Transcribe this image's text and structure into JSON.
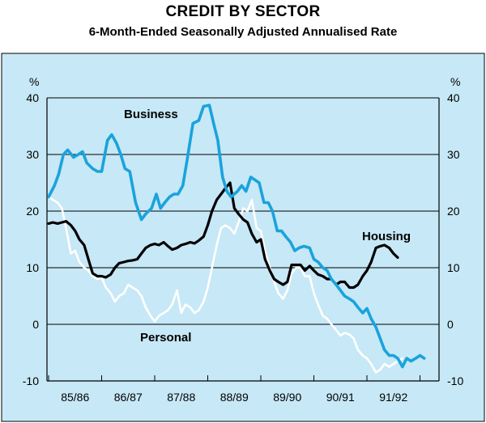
{
  "title": "CREDIT BY SECTOR",
  "subtitle": "6-Month-Ended Seasonally Adjusted Annualised Rate",
  "colors": {
    "panel": "#c7e8f6",
    "business": "#1aa3dc",
    "housing": "#000000",
    "personal": "#ffffff",
    "grid": "#000000"
  },
  "chart_data": {
    "type": "line",
    "title": "CREDIT BY SECTOR",
    "subtitle": "6-Month-Ended Seasonally Adjusted Annualised Rate",
    "ylabel_left": "%",
    "ylabel_right": "%",
    "ylim": [
      -10,
      40
    ],
    "yticks": [
      40,
      30,
      20,
      10,
      0,
      -10
    ],
    "yticks_left_labels": [
      "40",
      "30",
      "20",
      "10",
      "0",
      "-10"
    ],
    "yticks_right_labels": [
      "40",
      "30",
      "20",
      "10",
      "0",
      "-10"
    ],
    "xlim": [
      0,
      7.6
    ],
    "xticks": [
      "85/86",
      "86/87",
      "87/88",
      "88/89",
      "89/90",
      "90/91",
      "91/92"
    ],
    "grid": true,
    "series": [
      {
        "name": "Business",
        "label": "Business",
        "x": [
          0,
          0.11,
          0.19,
          0.28,
          0.36,
          0.47,
          0.56,
          0.64,
          0.72,
          0.83,
          0.92,
          1.0,
          1.11,
          1.19,
          1.28,
          1.36,
          1.44,
          1.53,
          1.64,
          1.75,
          1.83,
          1.94,
          2.03,
          2.11,
          2.19,
          2.28,
          2.36,
          2.44,
          2.53,
          2.61,
          2.72,
          2.83,
          2.92,
          3.03,
          3.11,
          3.19,
          3.28,
          3.36,
          3.44,
          3.56,
          3.64,
          3.72,
          3.81,
          3.89,
          3.97,
          4.06,
          4.14,
          4.22,
          4.31,
          4.39,
          4.47,
          4.56,
          4.64,
          4.72,
          4.81,
          4.92,
          5.0,
          5.08,
          5.17,
          5.25,
          5.33,
          5.42,
          5.5,
          5.58,
          5.67,
          5.75,
          5.83,
          5.92,
          6.0,
          6.08,
          6.17,
          6.25,
          6.33,
          6.42,
          6.5,
          6.58,
          6.67,
          6.75,
          6.83,
          6.92,
          7.0,
          7.08,
          7.17,
          7.25,
          7.33
        ],
        "values": [
          22.5,
          24.5,
          26.5,
          30.0,
          30.8,
          29.5,
          30.0,
          30.5,
          28.5,
          27.5,
          27.0,
          27.0,
          32.5,
          33.5,
          32.0,
          30.0,
          27.5,
          27.0,
          21.5,
          18.5,
          19.5,
          20.5,
          23.0,
          20.5,
          21.5,
          22.5,
          23.0,
          23.0,
          24.5,
          29.0,
          35.5,
          36.0,
          38.5,
          38.7,
          35.5,
          32.5,
          26.0,
          23.5,
          22.5,
          23.5,
          24.5,
          23.5,
          26.0,
          25.5,
          25.0,
          21.5,
          21.5,
          20.0,
          16.5,
          16.5,
          15.5,
          14.5,
          13.0,
          13.5,
          13.8,
          13.5,
          11.5,
          11.0,
          10.0,
          9.5,
          8.0,
          7.0,
          6.0,
          5.0,
          4.5,
          4.0,
          3.0,
          2.0,
          2.8,
          1.0,
          -0.5,
          -2.5,
          -4.5,
          -5.5,
          -5.5,
          -6.0,
          -7.5,
          -6.0,
          -6.5,
          -6.0,
          -5.5,
          -6.0,
          null,
          null,
          null
        ]
      },
      {
        "name": "Housing",
        "label": "Housing",
        "x": [
          0,
          0.08,
          0.17,
          0.25,
          0.33,
          0.42,
          0.5,
          0.58,
          0.67,
          0.75,
          0.83,
          0.92,
          1.0,
          1.08,
          1.17,
          1.25,
          1.33,
          1.42,
          1.5,
          1.58,
          1.67,
          1.75,
          1.83,
          1.92,
          2.0,
          2.08,
          2.17,
          2.25,
          2.33,
          2.42,
          2.5,
          2.58,
          2.67,
          2.75,
          2.83,
          2.92,
          3.0,
          3.08,
          3.17,
          3.25,
          3.33,
          3.42,
          3.5,
          3.58,
          3.67,
          3.75,
          3.83,
          3.92,
          4.0,
          4.08,
          4.17,
          4.25,
          4.33,
          4.42,
          4.5,
          4.58,
          4.67,
          4.75,
          4.83,
          4.92,
          5.0,
          5.08,
          5.17,
          5.25,
          5.33,
          5.42,
          5.5,
          5.58,
          5.67,
          5.75,
          5.83,
          5.92,
          6.0,
          6.08,
          6.17,
          6.25,
          6.33,
          6.42,
          6.5,
          6.58,
          6.67,
          6.75,
          6.83,
          6.92,
          7.0,
          7.08
        ],
        "values": [
          17.8,
          18.0,
          17.8,
          18.0,
          18.2,
          17.5,
          16.5,
          15.0,
          14.0,
          11.5,
          9.0,
          8.5,
          8.5,
          8.3,
          8.8,
          10.0,
          10.8,
          11.0,
          11.2,
          11.3,
          11.5,
          12.5,
          13.5,
          14.0,
          14.2,
          14.0,
          14.5,
          13.8,
          13.2,
          13.5,
          14.0,
          14.2,
          14.5,
          14.3,
          14.8,
          15.5,
          17.5,
          20.0,
          22.0,
          23.0,
          24.0,
          25.0,
          20.5,
          19.5,
          18.5,
          18.0,
          16.0,
          14.5,
          15.0,
          11.5,
          9.5,
          8.0,
          7.5,
          7.0,
          7.5,
          10.5,
          10.5,
          10.5,
          9.5,
          10.3,
          9.5,
          8.8,
          8.5,
          8.0,
          8.0,
          7.0,
          7.5,
          7.5,
          6.5,
          6.5,
          7.0,
          8.5,
          9.5,
          11.0,
          13.5,
          13.8,
          14.0,
          13.5,
          12.5,
          11.8,
          null,
          null,
          null,
          null,
          null,
          null
        ]
      },
      {
        "name": "Personal",
        "label": "Personal",
        "x": [
          0,
          0.08,
          0.17,
          0.25,
          0.33,
          0.42,
          0.5,
          0.58,
          0.67,
          0.75,
          0.83,
          0.92,
          1.0,
          1.08,
          1.17,
          1.25,
          1.33,
          1.42,
          1.5,
          1.58,
          1.67,
          1.75,
          1.83,
          1.92,
          2.0,
          2.08,
          2.17,
          2.25,
          2.33,
          2.42,
          2.5,
          2.58,
          2.67,
          2.75,
          2.83,
          2.92,
          3.0,
          3.08,
          3.17,
          3.25,
          3.33,
          3.42,
          3.5,
          3.58,
          3.67,
          3.75,
          3.83,
          3.92,
          4.0,
          4.08,
          4.17,
          4.25,
          4.33,
          4.42,
          4.5,
          4.58,
          4.67,
          4.75,
          4.83,
          4.92,
          5.0,
          5.08,
          5.17,
          5.25,
          5.33,
          5.42,
          5.5,
          5.58,
          5.67,
          5.75,
          5.83,
          5.92,
          6.0,
          6.08,
          6.17,
          6.25,
          6.33,
          6.42,
          6.5,
          6.58,
          6.67,
          6.75,
          6.83,
          6.92,
          7.0,
          7.08
        ],
        "values": [
          22.5,
          22.0,
          21.5,
          20.5,
          17.0,
          12.5,
          13.0,
          11.0,
          10.0,
          9.5,
          8.5,
          8.0,
          8.3,
          6.5,
          5.5,
          4.0,
          5.0,
          5.5,
          7.0,
          6.5,
          6.0,
          5.0,
          3.0,
          1.5,
          0.5,
          1.5,
          2.0,
          2.5,
          3.5,
          6.0,
          2.0,
          3.5,
          3.0,
          2.0,
          2.5,
          4.0,
          6.5,
          10.0,
          14.0,
          17.0,
          17.5,
          17.0,
          16.0,
          18.0,
          20.5,
          20.0,
          22.0,
          17.0,
          16.5,
          13.0,
          10.0,
          7.5,
          5.5,
          4.5,
          6.0,
          9.0,
          10.0,
          10.0,
          8.5,
          8.5,
          5.5,
          3.5,
          1.5,
          1.0,
          0.0,
          -1.0,
          -2.0,
          -1.5,
          -1.8,
          -2.5,
          -4.5,
          -5.5,
          -6.0,
          -7.0,
          -8.5,
          -8.0,
          -7.0,
          -7.5,
          -7.0,
          -6.5,
          -6.0,
          null,
          null,
          null,
          null,
          null
        ]
      }
    ],
    "annotations": [
      {
        "text": "Business",
        "series": "Business"
      },
      {
        "text": "Housing",
        "series": "Housing"
      },
      {
        "text": "Personal",
        "series": "Personal"
      }
    ]
  }
}
